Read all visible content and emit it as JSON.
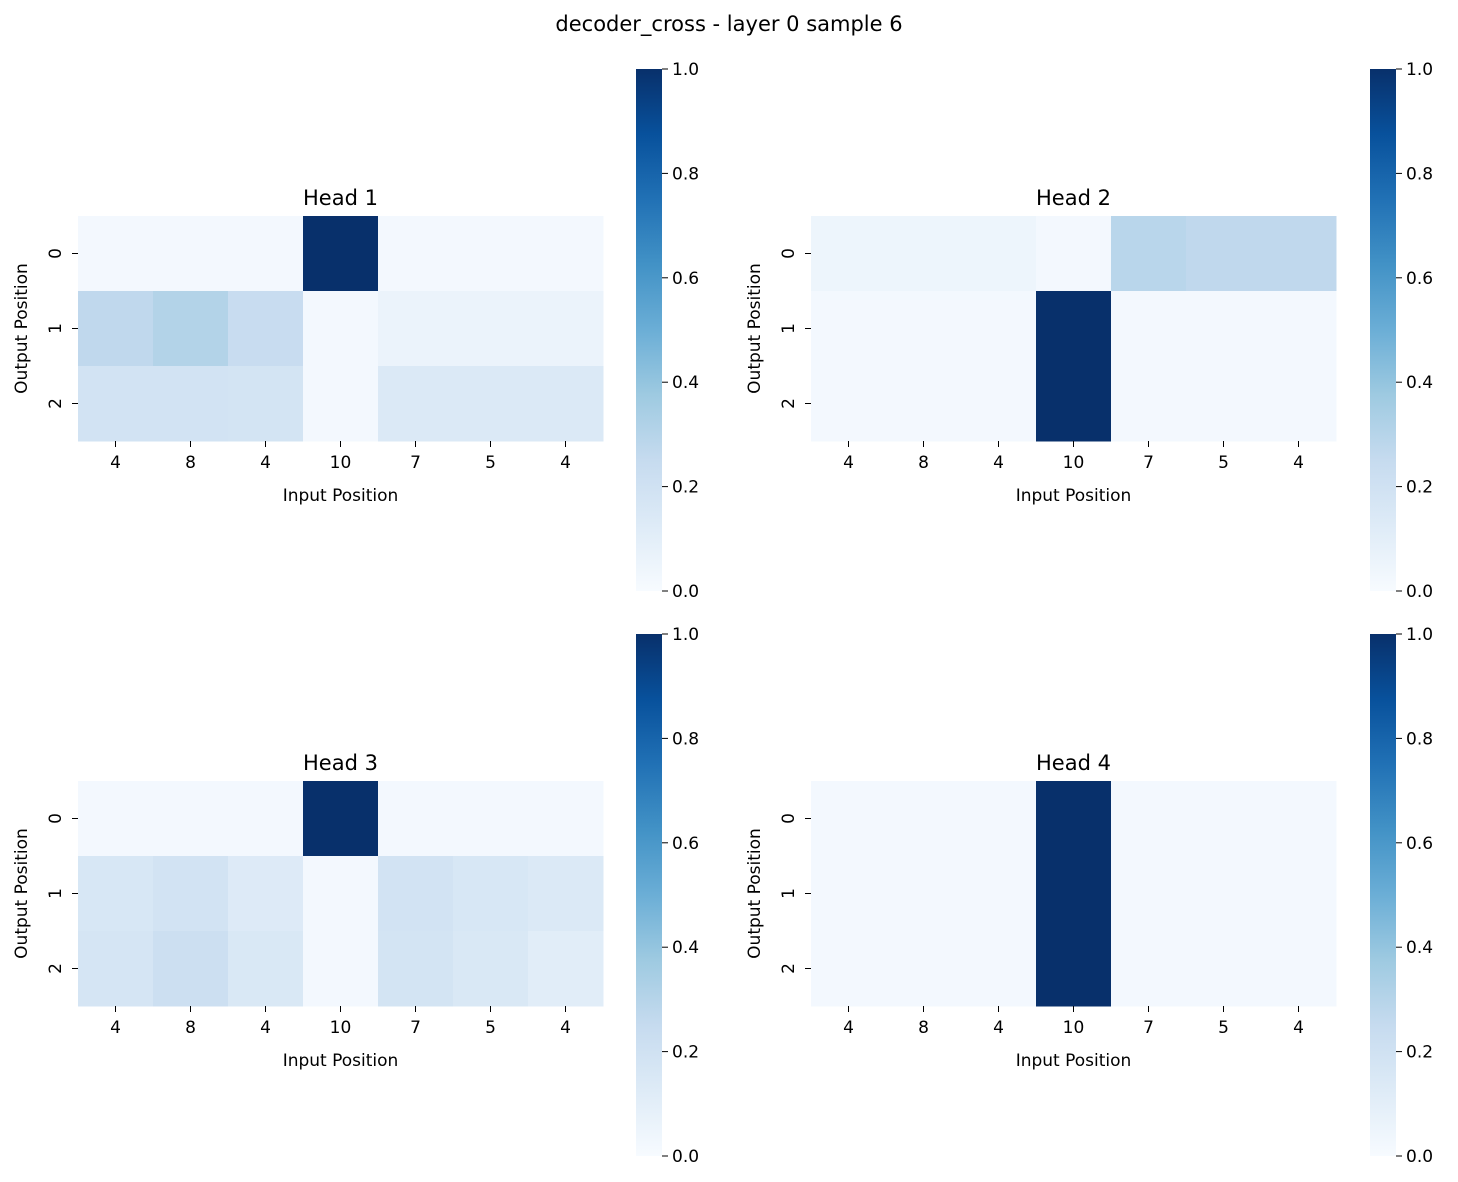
{
  "figure": {
    "title": "decoder_cross - layer 0 sample 6",
    "colormap": [
      "#f7fbff",
      "#deebf7",
      "#c6dbef",
      "#9ecae1",
      "#6baed6",
      "#4292c6",
      "#2171b5",
      "#08519c",
      "#08306b"
    ]
  },
  "chart_data": [
    {
      "type": "heatmap",
      "title": "Head 1",
      "xlabel": "Input Position",
      "ylabel": "Output Position",
      "x_tick_labels": [
        "4",
        "8",
        "4",
        "10",
        "7",
        "5",
        "4"
      ],
      "y_tick_labels": [
        "0",
        "1",
        "2"
      ],
      "value_range": [
        0,
        1
      ],
      "colorbar_ticks": [
        "0.0",
        "0.2",
        "0.4",
        "0.6",
        "0.8",
        "1.0"
      ],
      "values": [
        [
          0.02,
          0.02,
          0.02,
          1.0,
          0.02,
          0.02,
          0.02
        ],
        [
          0.27,
          0.31,
          0.24,
          0.02,
          0.06,
          0.06,
          0.06
        ],
        [
          0.19,
          0.19,
          0.18,
          0.02,
          0.14,
          0.14,
          0.14
        ]
      ]
    },
    {
      "type": "heatmap",
      "title": "Head 2",
      "xlabel": "Input Position",
      "ylabel": "Output Position",
      "x_tick_labels": [
        "4",
        "8",
        "4",
        "10",
        "7",
        "5",
        "4"
      ],
      "y_tick_labels": [
        "0",
        "1",
        "2"
      ],
      "value_range": [
        0,
        1
      ],
      "colorbar_ticks": [
        "0.0",
        "0.2",
        "0.4",
        "0.6",
        "0.8",
        "1.0"
      ],
      "values": [
        [
          0.05,
          0.05,
          0.05,
          0.02,
          0.29,
          0.27,
          0.27
        ],
        [
          0.02,
          0.02,
          0.02,
          1.0,
          0.02,
          0.02,
          0.02
        ],
        [
          0.02,
          0.02,
          0.02,
          1.0,
          0.02,
          0.02,
          0.02
        ]
      ]
    },
    {
      "type": "heatmap",
      "title": "Head 3",
      "xlabel": "Input Position",
      "ylabel": "Output Position",
      "x_tick_labels": [
        "4",
        "8",
        "4",
        "10",
        "7",
        "5",
        "4"
      ],
      "y_tick_labels": [
        "0",
        "1",
        "2"
      ],
      "value_range": [
        0,
        1
      ],
      "colorbar_ticks": [
        "0.0",
        "0.2",
        "0.4",
        "0.6",
        "0.8",
        "1.0"
      ],
      "values": [
        [
          0.02,
          0.02,
          0.02,
          1.0,
          0.02,
          0.02,
          0.02
        ],
        [
          0.16,
          0.19,
          0.13,
          0.02,
          0.19,
          0.16,
          0.14
        ],
        [
          0.17,
          0.22,
          0.15,
          0.02,
          0.18,
          0.15,
          0.11
        ]
      ]
    },
    {
      "type": "heatmap",
      "title": "Head 4",
      "xlabel": "Input Position",
      "ylabel": "Output Position",
      "x_tick_labels": [
        "4",
        "8",
        "4",
        "10",
        "7",
        "5",
        "4"
      ],
      "y_tick_labels": [
        "0",
        "1",
        "2"
      ],
      "value_range": [
        0,
        1
      ],
      "colorbar_ticks": [
        "0.0",
        "0.2",
        "0.4",
        "0.6",
        "0.8",
        "1.0"
      ],
      "values": [
        [
          0.02,
          0.02,
          0.02,
          1.0,
          0.02,
          0.02,
          0.02
        ],
        [
          0.02,
          0.02,
          0.02,
          1.0,
          0.02,
          0.02,
          0.02
        ],
        [
          0.02,
          0.02,
          0.02,
          1.0,
          0.02,
          0.02,
          0.02
        ]
      ]
    }
  ]
}
